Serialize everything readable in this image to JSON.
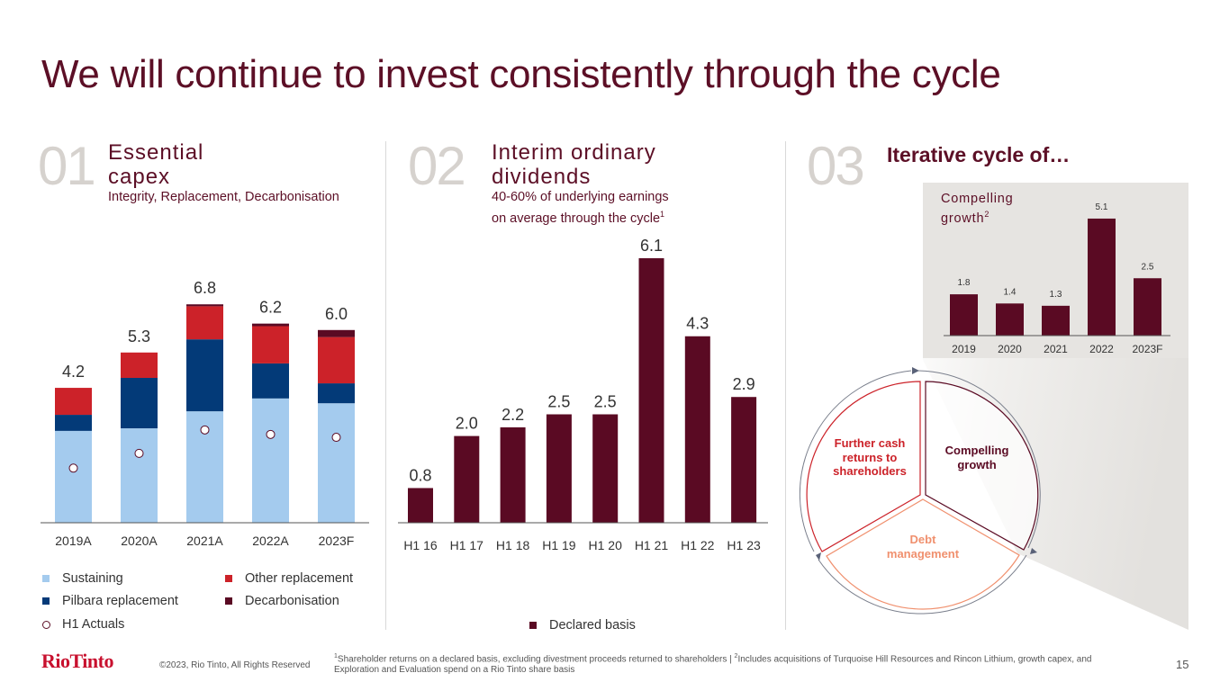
{
  "page": {
    "title": "We will continue to invest consistently through the cycle",
    "page_number": "15"
  },
  "section1": {
    "number": "01",
    "title_line1": "Essential",
    "title_line2": "capex",
    "subtitle": "Integrity, Replacement, Decarbonisation",
    "legend": [
      {
        "label": "Sustaining",
        "color": "#a4cbee"
      },
      {
        "label": "Other replacement",
        "color": "#cc2229"
      },
      {
        "label": "Pilbara replacement",
        "color": "#033a78"
      },
      {
        "label": "Decarbonisation",
        "color": "#5a0a23"
      },
      {
        "label": "H1 Actuals",
        "marker": "circle"
      }
    ]
  },
  "section2": {
    "number": "02",
    "title_line1": "Interim ordinary",
    "title_line2": "dividends",
    "subtitle_line1": "40-60% of underlying earnings",
    "subtitle_line2": "on average through the cycle",
    "subtitle_sup": "1",
    "legend": [
      {
        "label": "Declared basis",
        "color": "#5a0a23"
      }
    ]
  },
  "section3": {
    "number": "03",
    "title": "Iterative cycle of…",
    "growth_title_line1": "Compelling",
    "growth_title_line2": "growth",
    "growth_title_sup": "2",
    "cycle": {
      "segments": [
        {
          "label_lines": [
            "Further cash",
            "returns to",
            "shareholders"
          ],
          "color": "#cc2229"
        },
        {
          "label_lines": [
            "Compelling",
            "growth"
          ],
          "color": "#5a0a23"
        },
        {
          "label_lines": [
            "Debt",
            "management"
          ],
          "color": "#f0906e"
        }
      ]
    }
  },
  "chart_data": [
    {
      "type": "bar",
      "stacked": true,
      "title": "Essential capex",
      "categories": [
        "2019A",
        "2020A",
        "2021A",
        "2022A",
        "2023F"
      ],
      "series": [
        {
          "name": "Sustaining",
          "color": "#a4cbee",
          "values": [
            2.86,
            2.94,
            3.47,
            3.87,
            3.72
          ]
        },
        {
          "name": "Pilbara replacement",
          "color": "#033a78",
          "values": [
            0.5,
            1.57,
            2.24,
            1.09,
            0.62
          ]
        },
        {
          "name": "Other replacement",
          "color": "#cc2229",
          "values": [
            0.84,
            0.79,
            1.03,
            1.16,
            1.44
          ]
        },
        {
          "name": "Decarbonisation",
          "color": "#5a0a23",
          "values": [
            0.0,
            0.0,
            0.06,
            0.08,
            0.22
          ]
        }
      ],
      "totals": [
        "4.2",
        "5.3",
        "6.8",
        "6.2",
        "6.0"
      ],
      "total_values": [
        4.2,
        5.3,
        6.8,
        6.2,
        6.0
      ],
      "markers": {
        "name": "H1 Actuals",
        "values": [
          1.7,
          2.16,
          2.89,
          2.75,
          2.66
        ]
      },
      "ylim": [
        0,
        6.8
      ]
    },
    {
      "type": "bar",
      "title": "Interim ordinary dividends",
      "categories": [
        "H1 16",
        "H1 17",
        "H1 18",
        "H1 19",
        "H1 20",
        "H1 21",
        "H1 22",
        "H1 23"
      ],
      "series": [
        {
          "name": "Declared basis",
          "color": "#5a0a23",
          "values": [
            0.8,
            2.0,
            2.2,
            2.5,
            2.5,
            6.1,
            4.3,
            2.9
          ]
        }
      ],
      "labels": [
        "0.8",
        "2.0",
        "2.2",
        "2.5",
        "2.5",
        "6.1",
        "4.3",
        "2.9"
      ],
      "ylim": [
        0,
        6.1
      ]
    },
    {
      "type": "bar",
      "title": "Compelling growth",
      "categories": [
        "2019",
        "2020",
        "2021",
        "2022",
        "2023F"
      ],
      "series": [
        {
          "name": "Compelling growth",
          "color": "#5a0a23",
          "values": [
            1.8,
            1.4,
            1.3,
            5.1,
            2.5
          ]
        }
      ],
      "labels": [
        "1.8",
        "1.4",
        "1.3",
        "5.1",
        "2.5"
      ],
      "ylim": [
        0,
        5.1
      ]
    }
  ],
  "footer": {
    "logo": "RioTinto",
    "copyright": "©2023, Rio Tinto, All Rights Reserved",
    "note_sup1": "1",
    "note1": "Shareholder returns on a declared basis, excluding divestment proceeds returned to shareholders | ",
    "note_sup2": "2",
    "note2": "Includes acquisitions of Turquoise Hill Resources and Rincon Lithium, growth capex, and Exploration and Evaluation spend on a Rio Tinto share basis"
  }
}
